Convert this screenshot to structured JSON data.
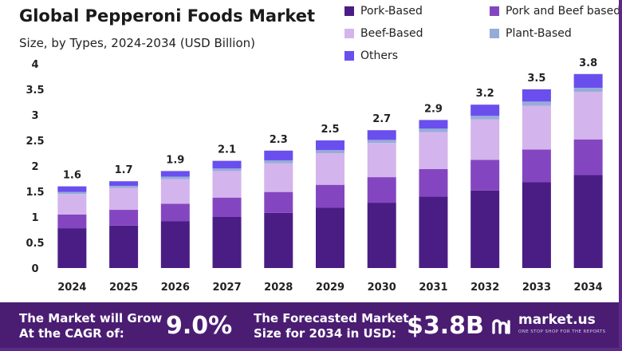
{
  "chart_data": {
    "type": "bar",
    "stacked": true,
    "title": "Global Pepperoni Foods Market",
    "subtitle": "Size, by Types, 2024-2034 (USD Billion)",
    "categories": [
      "2024",
      "2025",
      "2026",
      "2027",
      "2028",
      "2029",
      "2030",
      "2031",
      "2032",
      "2033",
      "2034"
    ],
    "totals": [
      "1.6",
      "1.7",
      "1.9",
      "2.1",
      "2.3",
      "2.5",
      "2.7",
      "2.9",
      "3.2",
      "3.5",
      "3.8"
    ],
    "series": [
      {
        "name": "Pork-Based",
        "color": "#4a1d84",
        "values": [
          0.78,
          0.83,
          0.92,
          1.0,
          1.08,
          1.18,
          1.28,
          1.4,
          1.52,
          1.68,
          1.82
        ]
      },
      {
        "name": "Pork and Beef based",
        "color": "#8446c0",
        "values": [
          0.27,
          0.31,
          0.34,
          0.38,
          0.41,
          0.45,
          0.5,
          0.54,
          0.6,
          0.64,
          0.7
        ]
      },
      {
        "name": "Beef-Based",
        "color": "#d4b4ec",
        "values": [
          0.4,
          0.43,
          0.48,
          0.52,
          0.56,
          0.62,
          0.67,
          0.72,
          0.79,
          0.86,
          0.93
        ]
      },
      {
        "name": "Plant-Based",
        "color": "#96acd8",
        "values": [
          0.04,
          0.04,
          0.05,
          0.05,
          0.06,
          0.06,
          0.06,
          0.07,
          0.07,
          0.08,
          0.08
        ]
      },
      {
        "name": "Others",
        "color": "#6a4fee",
        "values": [
          0.11,
          0.09,
          0.11,
          0.15,
          0.19,
          0.19,
          0.19,
          0.17,
          0.22,
          0.24,
          0.27
        ]
      }
    ],
    "y_ticks": [
      "0",
      "0.5",
      "1",
      "1.5",
      "2",
      "2.5",
      "3",
      "3.5",
      "4"
    ],
    "ylim": [
      0,
      4
    ],
    "xlabel": "",
    "ylabel": "",
    "grid": false,
    "legend_position": "top-right"
  },
  "footer": {
    "cagr_label_line1": "The Market will Grow",
    "cagr_label_line2": "At the CAGR of:",
    "cagr_value": "9.0%",
    "forecast_label_line1": "The Forecasted Market",
    "forecast_label_line2": "Size for 2034 in USD:",
    "forecast_value": "$3.8B",
    "brand_name": "market.us",
    "brand_tagline": "ONE STOP SHOP FOR THE REPORTS"
  }
}
